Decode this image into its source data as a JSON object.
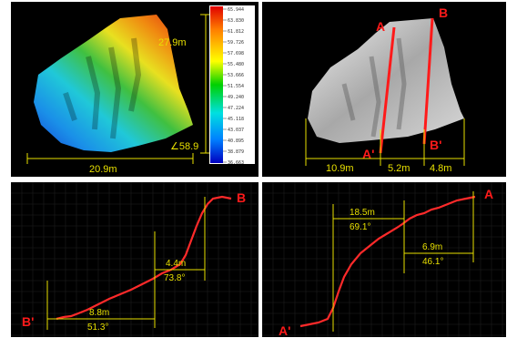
{
  "panels": {
    "colormap": {
      "dimensions": {
        "height": "27.9m",
        "angle": "∠58.9",
        "width": "20.9m"
      },
      "colorbar_ticks": [
        "65.944",
        "63.830",
        "61.812",
        "59.726",
        "57.698",
        "55.480",
        "53.666",
        "51.554",
        "49.240",
        "47.224",
        "45.118",
        "43.037",
        "40.895",
        "38.879",
        "36.663"
      ]
    },
    "shaded": {
      "point_labels": {
        "a": "A",
        "b": "B",
        "a_prime": "A'",
        "b_prime": "B'"
      },
      "segments": [
        "10.9m",
        "5.2m",
        "4.8m"
      ]
    },
    "profile_bb": {
      "end_labels": {
        "start": "B'",
        "end": "B"
      },
      "seg1": {
        "distance": "8.8m",
        "angle": "51.3°"
      },
      "seg2": {
        "distance": "4.4m",
        "angle": "73.8°"
      }
    },
    "profile_aa": {
      "end_labels": {
        "start": "A'",
        "end": "A"
      },
      "seg1": {
        "distance": "18.5m",
        "angle": "69.1°"
      },
      "seg2": {
        "distance": "6.9m",
        "angle": "46.1°"
      }
    }
  },
  "colors": {
    "measure": "#e8e000",
    "section": "#ff1a1a",
    "panel_bg": "#000000"
  }
}
